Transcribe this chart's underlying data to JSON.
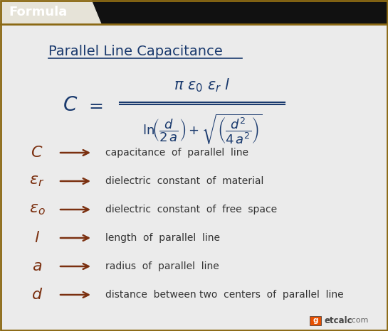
{
  "title": "Parallel Line Capacitance",
  "bg_color": "#ebebeb",
  "header_bg": "#0d0d0d",
  "header_text": "Formula",
  "header_text_color": "#ffffff",
  "header_tab_color": "#e8e5dc",
  "border_color": "#8B6914",
  "title_color": "#1a3a6e",
  "formula_color": "#1a3a6e",
  "symbol_color": "#7B3010",
  "description_color": "#333333",
  "arrow_color": "#7B3010",
  "variables": [
    {
      "sym_latex": "$C$",
      "description": "capacitance  of  parallel  line"
    },
    {
      "sym_latex": "$\\varepsilon_r$",
      "description": "dielectric  constant  of  material"
    },
    {
      "sym_latex": "$\\varepsilon_o$",
      "description": "dielectric  constant  of  free  space"
    },
    {
      "sym_latex": "$l$",
      "description": "length  of  parallel  line"
    },
    {
      "sym_latex": "$a$",
      "description": "radius  of  parallel  line"
    },
    {
      "sym_latex": "$d$",
      "description": "distance  between two  centers  of  parallel  line"
    }
  ],
  "figw": 5.45,
  "figh": 4.66,
  "dpi": 100
}
